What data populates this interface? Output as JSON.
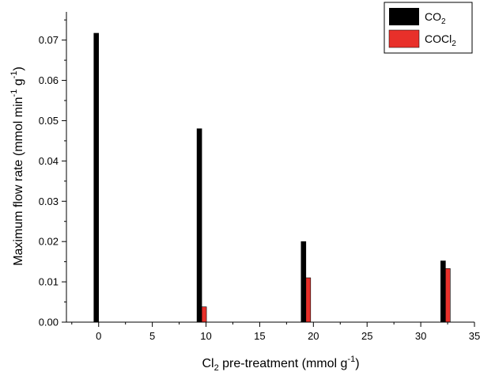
{
  "chart_data": {
    "type": "bar",
    "xlabel": "Cl₂ pre-treatment (mmol g⁻¹)",
    "ylabel": "Maximum flow rate (mmol min⁻¹ g⁻¹)",
    "xlim": [
      -3,
      35
    ],
    "ylim": [
      0,
      0.077
    ],
    "x_ticks": [
      0,
      5,
      10,
      15,
      20,
      25,
      30,
      35
    ],
    "y_ticks": [
      0.0,
      0.01,
      0.02,
      0.03,
      0.04,
      0.05,
      0.06,
      0.07
    ],
    "x_tick_labels": [
      "0",
      "5",
      "10",
      "15",
      "20",
      "25",
      "30",
      "35"
    ],
    "y_tick_labels": [
      "0.00",
      "0.01",
      "0.02",
      "0.03",
      "0.04",
      "0.05",
      "0.06",
      "0.07"
    ],
    "grid": false,
    "legend_position": "top-right",
    "series": [
      {
        "name": "CO₂",
        "color": "#000000",
        "x": [
          0,
          9.6,
          19.3,
          32.3
        ],
        "values": [
          0.0717,
          0.048,
          0.02,
          0.0152
        ]
      },
      {
        "name": "COCl₂",
        "color": "#e8302a",
        "x": [
          0,
          9.6,
          19.3,
          32.3
        ],
        "values": [
          0.0,
          0.0038,
          0.011,
          0.0133
        ]
      }
    ]
  }
}
